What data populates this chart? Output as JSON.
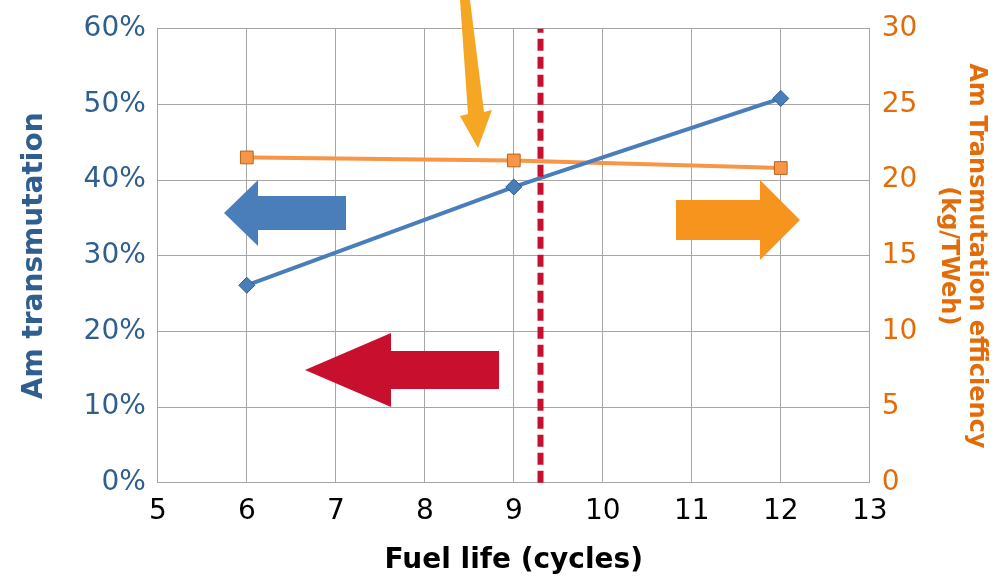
{
  "chart_data": {
    "type": "line",
    "xlabel": "Fuel life (cycles)",
    "ylabel": "Am transmutation",
    "y2label": "Am Transmutation efficiency (kg/TWeh)",
    "x": [
      6,
      9,
      12
    ],
    "series": [
      {
        "color": "#4a7ebb",
        "values": [
          26.1,
          39.1,
          50.8
        ],
        "marker": "diamond"
      },
      {
        "color": "#f79646",
        "values": [
          21.5,
          21.3,
          20.8
        ],
        "marker": "square",
        "axis": "y2"
      }
    ],
    "xlim": [
      5,
      13
    ],
    "xticks": [
      5,
      6,
      7,
      8,
      9,
      10,
      11,
      12,
      13
    ],
    "ylim": [
      0,
      60
    ],
    "yticks": [
      {
        "value": 0,
        "label": "0%"
      },
      {
        "value": 10,
        "label": "10%"
      },
      {
        "value": 20,
        "label": "20%"
      },
      {
        "value": 30,
        "label": "30%"
      },
      {
        "value": 40,
        "label": "40%"
      },
      {
        "value": 50,
        "label": "50%"
      },
      {
        "value": 60,
        "label": "60%"
      }
    ],
    "y2lim": [
      0,
      30
    ],
    "y2ticks": [
      0,
      5,
      10,
      15,
      20,
      25,
      30
    ],
    "ref_lines": [
      {
        "axis": "x",
        "value": 9.3,
        "color": "#c8102e",
        "line_style": "dashed"
      }
    ],
    "grid": true,
    "legend": false
  }
}
